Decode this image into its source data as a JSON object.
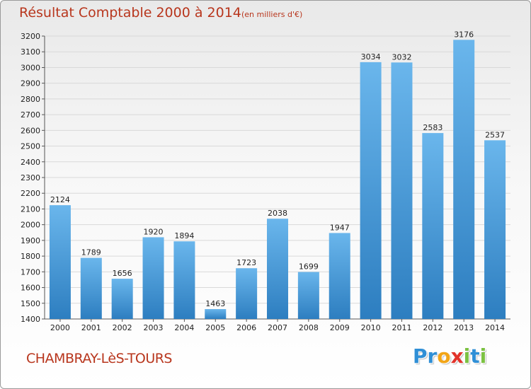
{
  "header": {
    "title": "Résultat Comptable 2000 à 2014",
    "subtitle": "(en milliers d'€)"
  },
  "footer": {
    "commune": "CHAMBRAY-LèS-TOURS",
    "logo_letters": [
      {
        "char": "P",
        "color": "#2f8fd6"
      },
      {
        "char": "r",
        "color": "#2f8fd6"
      },
      {
        "char": "o",
        "color": "#f2a517"
      },
      {
        "char": "x",
        "color": "#e2332a"
      },
      {
        "char": "i",
        "color": "#7cc242"
      },
      {
        "char": "t",
        "color": "#2f8fd6"
      },
      {
        "char": "i",
        "color": "#7cc242"
      }
    ]
  },
  "colors": {
    "bar_top": "#6ab6ec",
    "bar_bottom": "#2d7ec0",
    "text_accent": "#b8361d"
  },
  "chart_data": {
    "type": "bar",
    "title": "Résultat Comptable 2000 à 2014",
    "subtitle": "(en milliers d'€)",
    "xlabel": "",
    "ylabel": "",
    "categories": [
      "2000",
      "2001",
      "2002",
      "2003",
      "2004",
      "2005",
      "2006",
      "2007",
      "2008",
      "2009",
      "2010",
      "2011",
      "2012",
      "2013",
      "2014"
    ],
    "values": [
      2124,
      1789,
      1656,
      1920,
      1894,
      1463,
      1723,
      2038,
      1699,
      1947,
      3034,
      3032,
      2583,
      3176,
      2537
    ],
    "ylim": [
      1400,
      3200
    ],
    "yticks": [
      1400,
      1500,
      1600,
      1700,
      1800,
      1900,
      2000,
      2100,
      2200,
      2300,
      2400,
      2500,
      2600,
      2700,
      2800,
      2900,
      3000,
      3100,
      3200
    ],
    "grid": true,
    "data_labels": true
  }
}
